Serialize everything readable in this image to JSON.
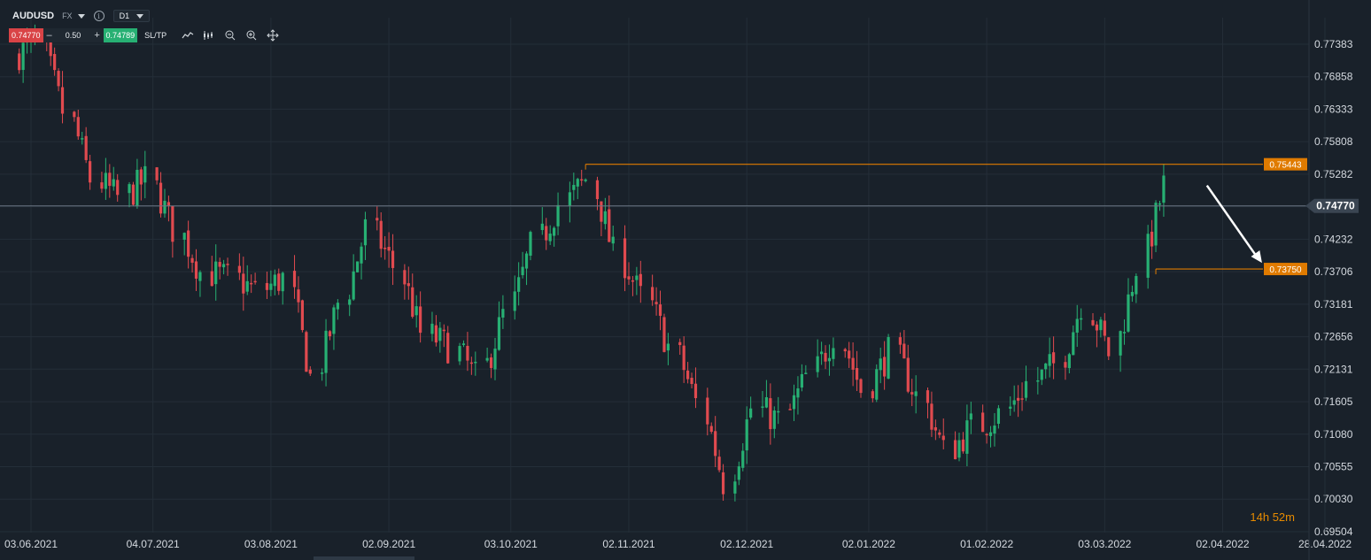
{
  "header": {
    "symbol": "AUDUSD",
    "market": "FX",
    "info_icon": "i",
    "timeframe": "D1"
  },
  "trade": {
    "sell_price": "0.74770",
    "minus": "–",
    "quantity": "0.50",
    "plus": "+",
    "buy_price": "0.74789",
    "sltp_label": "SL/TP"
  },
  "tools": [
    "line-chart-icon",
    "indicators-icon",
    "zoom-out-icon",
    "zoom-in-icon",
    "crosshair-icon"
  ],
  "timer": {
    "hours": "14",
    "h": "h",
    "minutes": "52",
    "m": "m"
  },
  "colors": {
    "background": "#19212a",
    "grid": "#242e38",
    "bull": "#27b073",
    "bear": "#e04a4f",
    "level": "#e07b00",
    "price_line": "#6b7683",
    "arrow": "#ffffff"
  },
  "chart_data": {
    "type": "candlestick",
    "y_ticks": [
      "0.77383",
      "0.76858",
      "0.76333",
      "0.75808",
      "0.75282",
      "0.74757",
      "0.74232",
      "0.73706",
      "0.73181",
      "0.72656",
      "0.72131",
      "0.71605",
      "0.71080",
      "0.70555",
      "0.70030",
      "0.69504"
    ],
    "x_ticks": [
      "03.06.2021",
      "04.07.2021",
      "03.08.2021",
      "02.09.2021",
      "03.10.2021",
      "02.11.2021",
      "02.12.2021",
      "02.01.2022",
      "01.02.2022",
      "03.03.2022",
      "02.04.2022",
      "28.04.2022"
    ],
    "ylim": [
      0.69504,
      0.77383
    ],
    "current_price": "0.74770",
    "resistance": {
      "value": 0.75443,
      "label": "0.75443",
      "from": "22.10.2021",
      "to": "28.04.2022"
    },
    "target": {
      "value": 0.7375,
      "label": "0.73750",
      "from": "16.03.2022",
      "to": "28.04.2022"
    },
    "arrow": {
      "from": [
        "29.03.2022",
        0.751
      ],
      "to": [
        "12.04.2022",
        0.7385
      ]
    },
    "series": [
      {
        "name": "AUDUSD D1 close",
        "points": [
          [
            "31.05.2021",
            0.772
          ],
          [
            "07.06.2021",
            0.774
          ],
          [
            "14.06.2021",
            0.763
          ],
          [
            "21.06.2021",
            0.752
          ],
          [
            "28.06.2021",
            0.749
          ],
          [
            "05.07.2021",
            0.752
          ],
          [
            "12.07.2021",
            0.744
          ],
          [
            "19.07.2021",
            0.737
          ],
          [
            "26.07.2021",
            0.736
          ],
          [
            "02.08.2021",
            0.734
          ],
          [
            "09.08.2021",
            0.736
          ],
          [
            "16.08.2021",
            0.72
          ],
          [
            "23.08.2021",
            0.732
          ],
          [
            "30.08.2021",
            0.744
          ],
          [
            "06.09.2021",
            0.738
          ],
          [
            "13.09.2021",
            0.727
          ],
          [
            "20.09.2021",
            0.725
          ],
          [
            "27.09.2021",
            0.72
          ],
          [
            "04.10.2021",
            0.73
          ],
          [
            "11.10.2021",
            0.741
          ],
          [
            "18.10.2021",
            0.748
          ],
          [
            "25.10.2021",
            0.752
          ],
          [
            "01.11.2021",
            0.74
          ],
          [
            "08.11.2021",
            0.733
          ],
          [
            "15.11.2021",
            0.725
          ],
          [
            "22.11.2021",
            0.716
          ],
          [
            "29.11.2021",
            0.703
          ],
          [
            "06.12.2021",
            0.715
          ],
          [
            "13.12.2021",
            0.713
          ],
          [
            "20.12.2021",
            0.72
          ],
          [
            "27.12.2021",
            0.727
          ],
          [
            "03.01.2022",
            0.718
          ],
          [
            "10.01.2022",
            0.724
          ],
          [
            "17.01.2022",
            0.717
          ],
          [
            "24.01.2022",
            0.708
          ],
          [
            "31.01.2022",
            0.712
          ],
          [
            "07.02.2022",
            0.714
          ],
          [
            "14.02.2022",
            0.719
          ],
          [
            "21.02.2022",
            0.722
          ],
          [
            "28.02.2022",
            0.732
          ],
          [
            "07.03.2022",
            0.724
          ],
          [
            "14.03.2022",
            0.738
          ],
          [
            "21.03.2022",
            0.751
          ],
          [
            "28.03.2022",
            0.7477
          ]
        ]
      }
    ]
  }
}
